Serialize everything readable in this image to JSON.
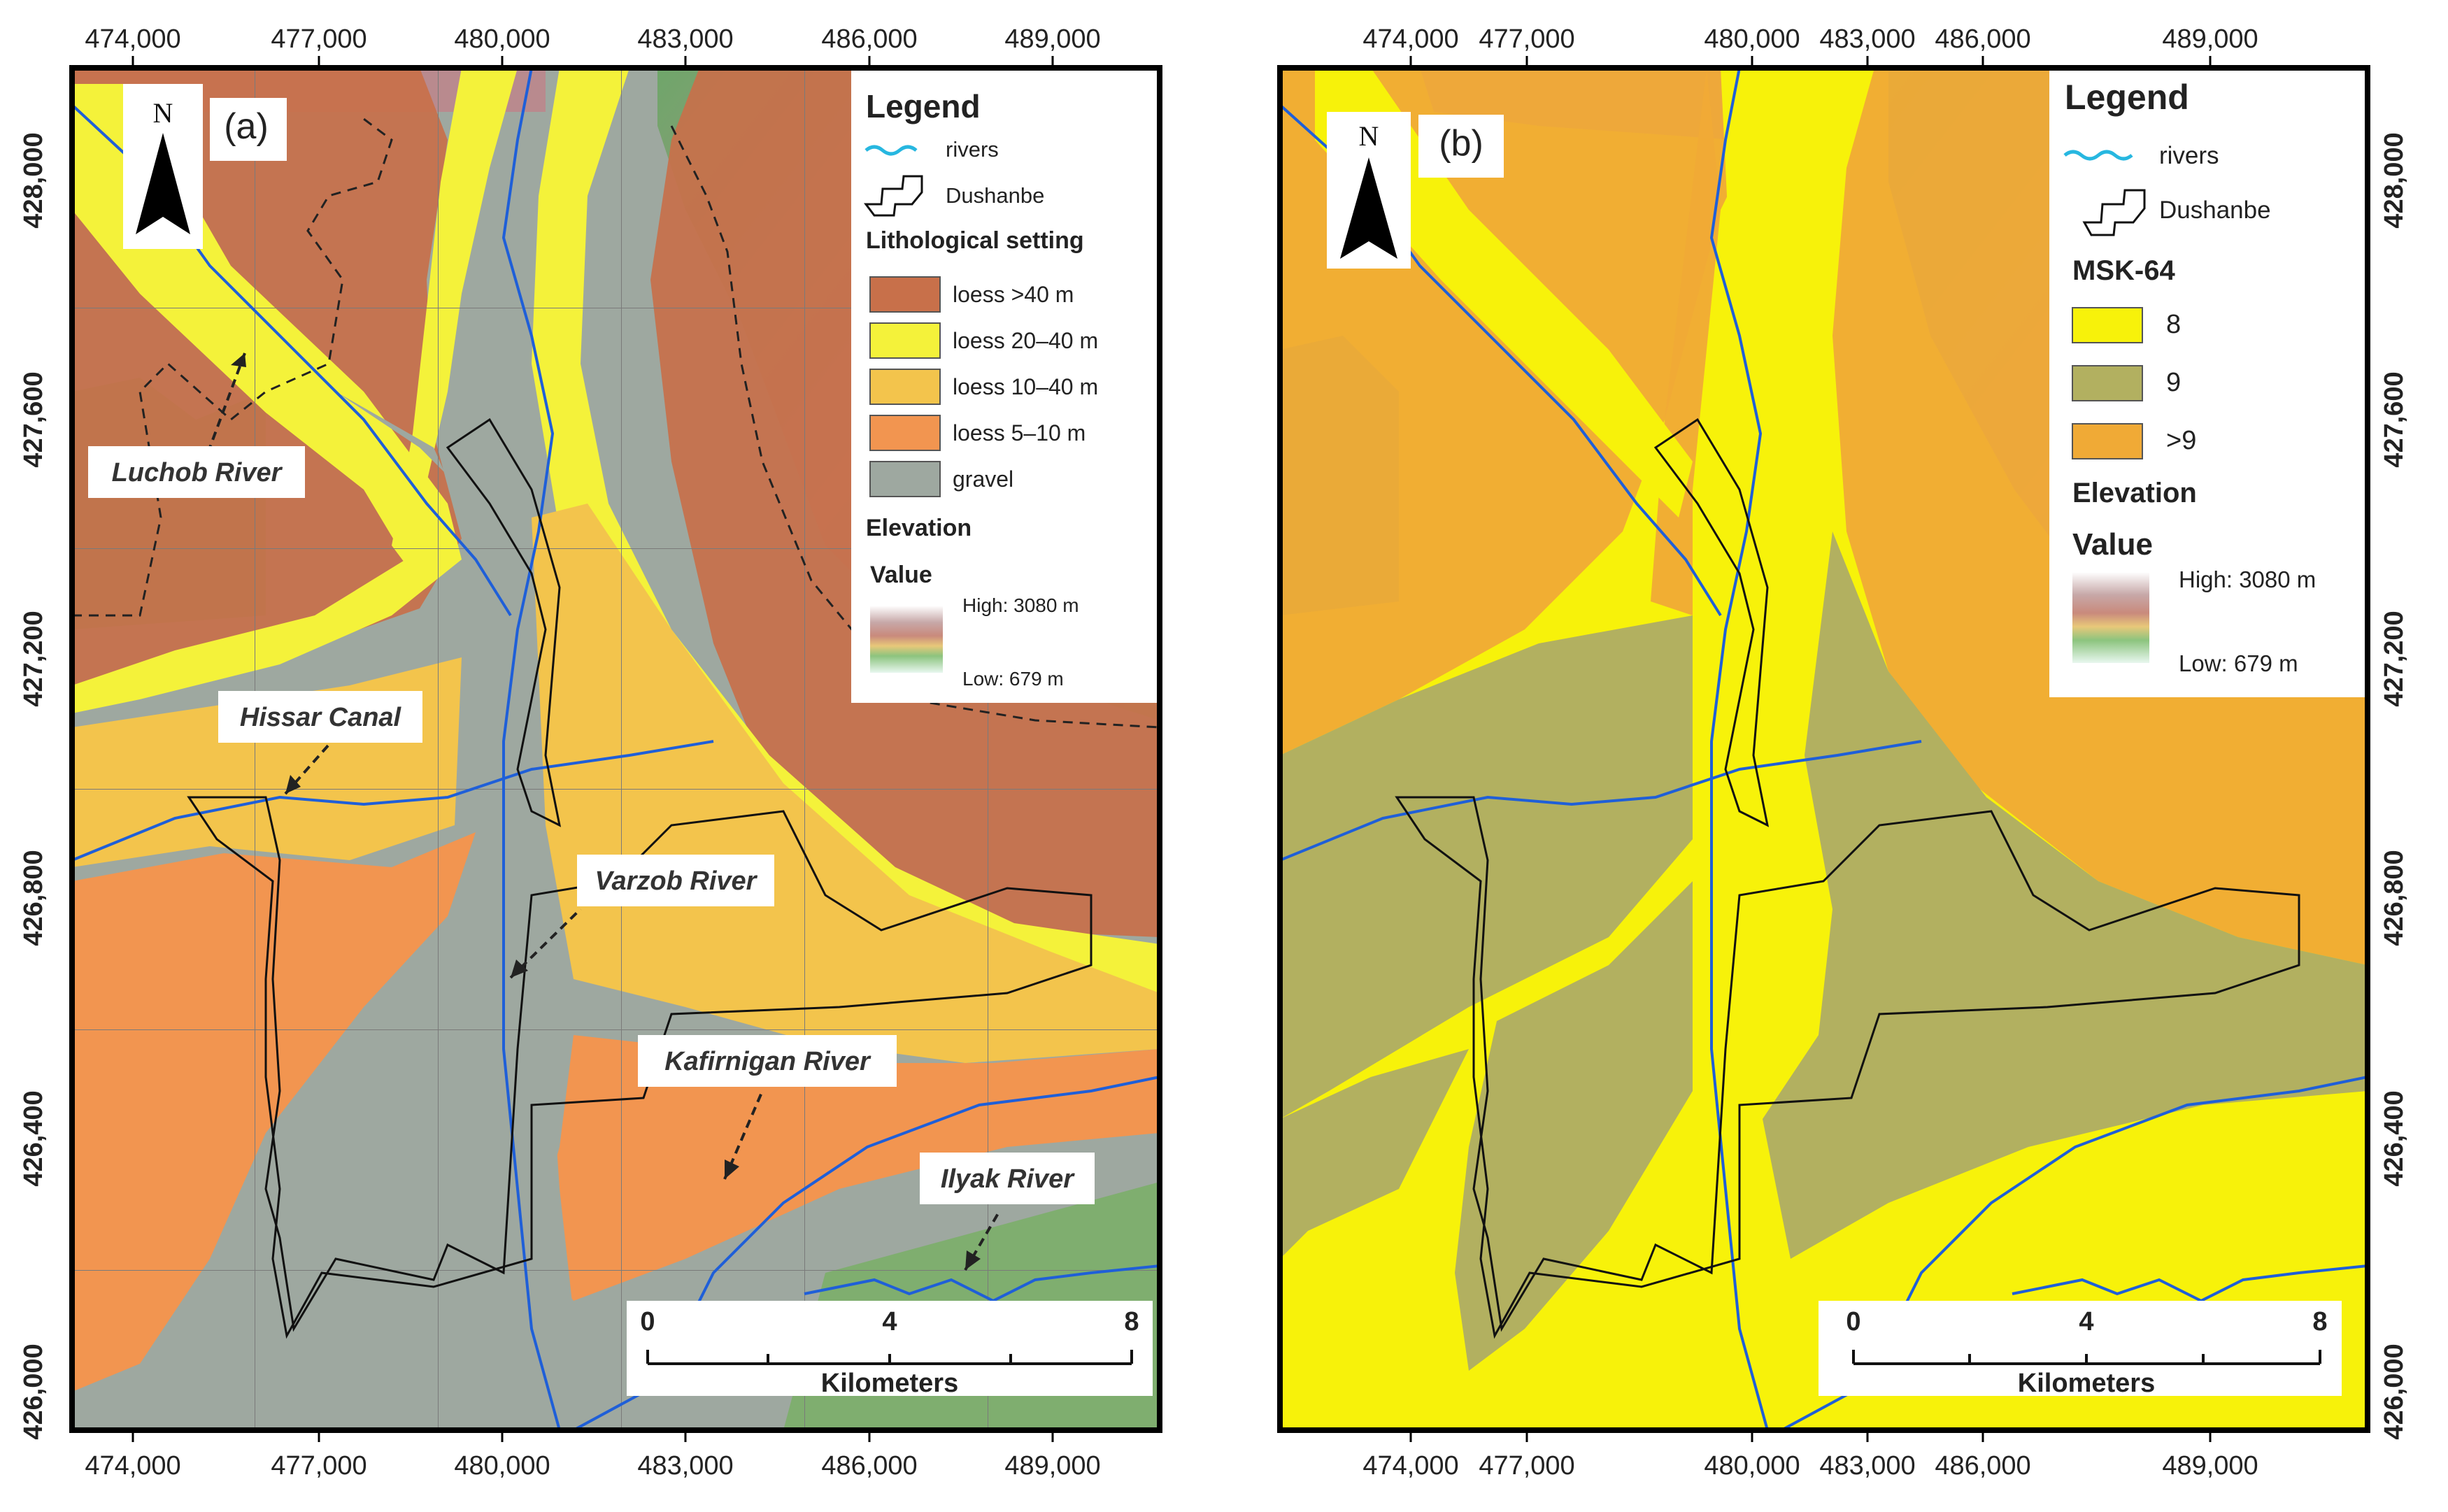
{
  "figure": {
    "maps": [
      {
        "id": "a",
        "panel_label": "(a)",
        "north_label": "N",
        "x_ticks": [
          "474,000",
          "477,000",
          "480,000",
          "483,000",
          "486,000",
          "489,000"
        ],
        "y_ticks_left": [
          "428,000",
          "427,600",
          "427,200",
          "426,800",
          "426,400",
          "426,000"
        ],
        "legend": {
          "title": "Legend",
          "rivers_label": "rivers",
          "city_label": "Dushanbe",
          "class_title": "Lithological setting",
          "classes": [
            {
              "label": "loess >40 m",
              "color": "#c8704a"
            },
            {
              "label": "loess 20–40 m",
              "color": "#f4f23a"
            },
            {
              "label": "loess 10–40 m",
              "color": "#f3c44c"
            },
            {
              "label": "loess 5–10 m",
              "color": "#f29550"
            },
            {
              "label": "gravel",
              "color": "#9ea8a0"
            }
          ],
          "elevation_title": "Elevation",
          "value_title": "Value",
          "high_label": "High: 3080 m",
          "low_label": "Low: 679 m"
        },
        "callouts": [
          "Luchob River",
          "Hissar Canal",
          "Varzob River",
          "Kafirnigan River",
          "Ilyak River"
        ],
        "scalebar": {
          "ticks": [
            "0",
            "4",
            "8"
          ],
          "unit": "Kilometers"
        }
      },
      {
        "id": "b",
        "panel_label": "(b)",
        "north_label": "N",
        "x_ticks": [
          "474,000",
          "477,000",
          "480,000",
          "483,000",
          "486,000",
          "489,000"
        ],
        "y_ticks_right": [
          "428,000",
          "427,600",
          "427,200",
          "426,800",
          "426,400",
          "426,000"
        ],
        "legend": {
          "title": "Legend",
          "rivers_label": "rivers",
          "city_label": "Dushanbe",
          "class_title": "MSK-64",
          "classes": [
            {
              "label": "8",
              "color": "#f7f20a"
            },
            {
              "label": "9",
              "color": "#b2b060"
            },
            {
              "label": ">9",
              "color": "#f0aa36"
            }
          ],
          "elevation_title": "Elevation",
          "value_title": "Value",
          "high_label": "High: 3080 m",
          "low_label": "Low: 679 m"
        },
        "scalebar": {
          "ticks": [
            "0",
            "4",
            "8"
          ],
          "unit": "Kilometers"
        }
      }
    ],
    "colors": {
      "river": "#1f5fd8",
      "legend_river": "#27b7e0",
      "boundary": "#111111",
      "terrain_green": "#6fa66a",
      "terrain_pink": "#b98a8e"
    }
  }
}
